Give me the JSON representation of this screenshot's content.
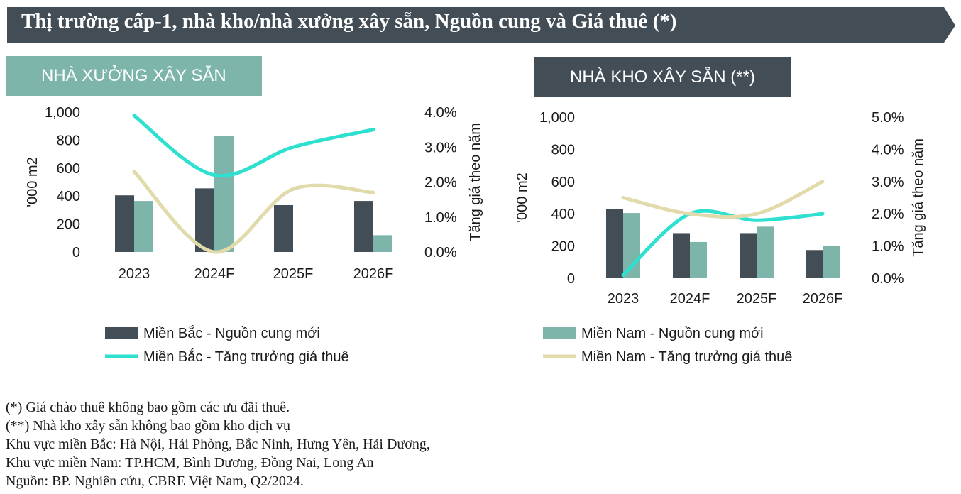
{
  "title": "Thị trường cấp-1, nhà kho/nhà xưởng xây sẵn, Nguồn cung và Giá thuê (*)",
  "colors": {
    "title_bg": "#424d55",
    "north_bar": "#424d55",
    "south_bar": "#7db5ab",
    "north_line": "#2de0cf",
    "south_line": "#e1dbac"
  },
  "chart_data": [
    {
      "panel": "NHÀ XƯỞNG XÂY SẴN",
      "type": "bar",
      "categories": [
        "2023",
        "2024F",
        "2025F",
        "2026F"
      ],
      "ylabel": "'000 m2",
      "ylim": [
        0,
        1000
      ],
      "yticks": [
        "0",
        "200",
        "400",
        "600",
        "800",
        "1,000"
      ],
      "y2label": "Tăng giá theo năm",
      "y2lim": [
        0,
        4
      ],
      "y2ticks": [
        "0.0%",
        "1.0%",
        "2.0%",
        "3.0%",
        "4.0%"
      ],
      "series": [
        {
          "name": "Miền Bắc - Nguồn cung mới",
          "kind": "bar",
          "values": [
            405,
            455,
            335,
            365
          ]
        },
        {
          "name": "Miền Nam - Nguồn cung mới",
          "kind": "bar",
          "values": [
            365,
            830,
            0,
            120
          ]
        },
        {
          "name": "Miền Bắc - Tăng trưởng giá thuê",
          "kind": "line",
          "axis": "right",
          "values": [
            3.9,
            2.2,
            3.0,
            3.5
          ]
        },
        {
          "name": "Miền Nam - Tăng trưởng giá thuê",
          "kind": "line",
          "axis": "right",
          "values": [
            2.3,
            0.0,
            1.8,
            1.7
          ]
        }
      ],
      "legend": [
        "Miền Bắc - Nguồn cung mới",
        "Miền Bắc - Tăng trưởng giá thuê"
      ]
    },
    {
      "panel": "NHÀ KHO XÂY SẴN (**)",
      "type": "bar",
      "categories": [
        "2023",
        "2024F",
        "2025F",
        "2026F"
      ],
      "ylabel": "'000 m2",
      "ylim": [
        0,
        1000
      ],
      "yticks": [
        "0",
        "200",
        "400",
        "600",
        "800",
        "1,000"
      ],
      "y2label": "Tăng  giá theo năm",
      "y2lim": [
        0,
        5
      ],
      "y2ticks": [
        "0.0%",
        "1.0%",
        "2.0%",
        "3.0%",
        "4.0%",
        "5.0%"
      ],
      "series": [
        {
          "name": "Miền Bắc - Nguồn cung mới",
          "kind": "bar",
          "values": [
            430,
            280,
            280,
            175
          ]
        },
        {
          "name": "Miền Nam - Nguồn cung mới",
          "kind": "bar",
          "values": [
            405,
            225,
            320,
            200
          ]
        },
        {
          "name": "Miền Bắc - Tăng trưởng giá thuê",
          "kind": "line",
          "axis": "right",
          "values": [
            0.1,
            2.0,
            1.8,
            2.0
          ]
        },
        {
          "name": "Miền Nam - Tăng trưởng giá thuê",
          "kind": "line",
          "axis": "right",
          "values": [
            2.5,
            2.0,
            2.0,
            3.0
          ]
        }
      ],
      "legend": [
        "Miền Nam - Nguồn cung mới",
        "Miền Nam - Tăng trưởng giá thuê"
      ]
    }
  ],
  "footnotes": [
    "(*) Giá chào thuê không bao gồm các ưu đãi thuê.",
    "(**) Nhà kho xây sẵn không bao gồm kho dịch vụ",
    "Khu vực miền Bắc: Hà Nội, Hải Phòng, Bắc Ninh, Hưng Yên, Hải Dương,",
    "Khu vực miền Nam: TP.HCM, Bình Dương, Đồng Nai, Long An",
    "Nguồn: BP. Nghiên cứu, CBRE Việt Nam, Q2/2024."
  ]
}
